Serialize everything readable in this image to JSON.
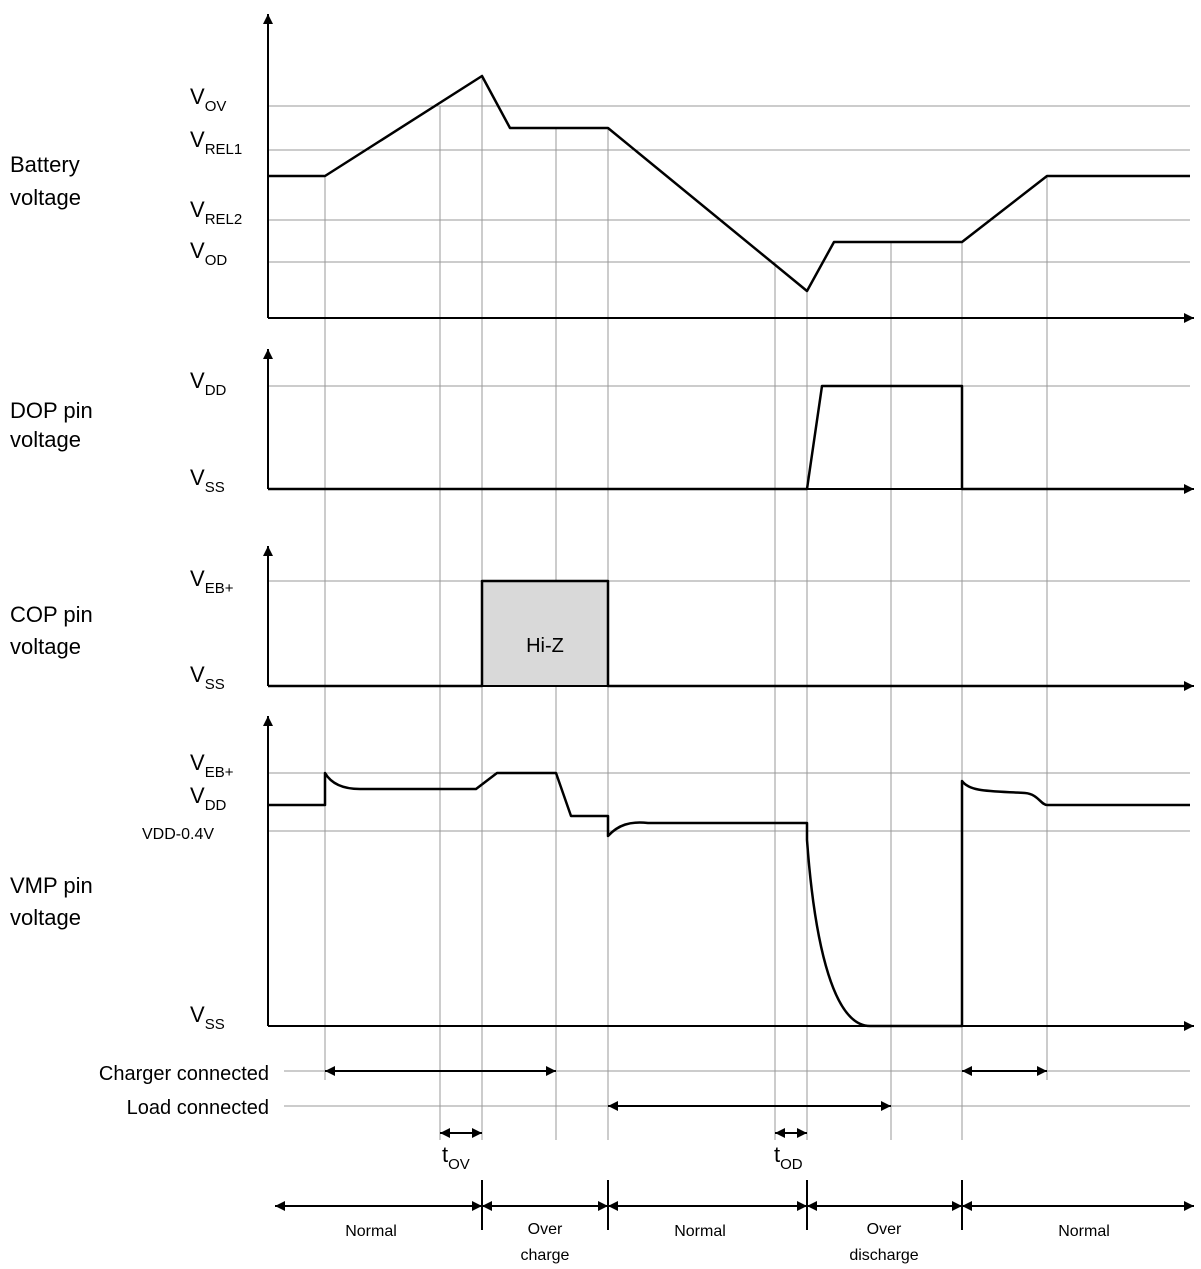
{
  "signals": {
    "battery": {
      "line1": "Battery",
      "line2": "voltage"
    },
    "dop": {
      "line1": "DOP  pin",
      "line2": "voltage"
    },
    "cop": {
      "line1": "COP  pin",
      "line2": "voltage"
    },
    "vmp": {
      "line1": "VMP  pin",
      "line2": "voltage"
    }
  },
  "levels": {
    "vov": {
      "main": "V",
      "sub": "OV"
    },
    "vrel1": {
      "main": "V",
      "sub": "REL1"
    },
    "vrel2": {
      "main": "V",
      "sub": "REL2"
    },
    "vod": {
      "main": "V",
      "sub": "OD"
    },
    "vdd": {
      "main": "V",
      "sub": "DD"
    },
    "vss": {
      "main": "V",
      "sub": "SS"
    },
    "veb": {
      "main": "V",
      "sub": "EB+"
    },
    "vdd04": "VDD-0.4V"
  },
  "hiz": "Hi-Z",
  "conditions": {
    "charger": "Charger connected",
    "load": "Load connected"
  },
  "timings": {
    "tov": {
      "main": "t",
      "sub": "OV"
    },
    "tod": {
      "main": "t",
      "sub": "OD"
    }
  },
  "states": {
    "s1": "Normal",
    "s2a": "Over",
    "s2b": "charge",
    "s3": "Normal",
    "s4a": "Over",
    "s4b": "discharge",
    "s5": "Normal"
  },
  "colors": {
    "grid": "#999999",
    "trace": "#000000",
    "hiz_fill": "#d9d9d9"
  }
}
